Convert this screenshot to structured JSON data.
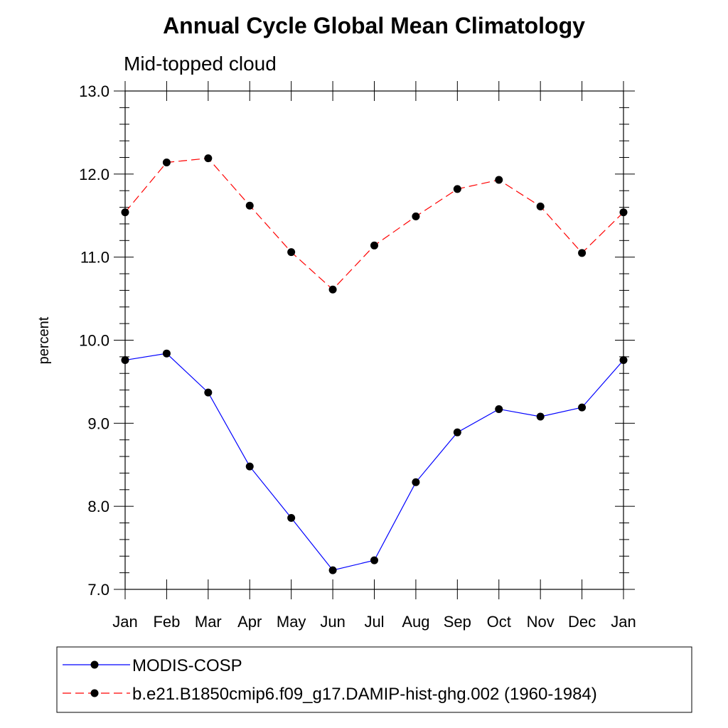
{
  "chart_data": {
    "type": "line",
    "title": "Annual Cycle Global Mean Climatology",
    "subtitle": "Mid-topped cloud",
    "xlabel": "",
    "ylabel": "percent",
    "categories": [
      "Jan",
      "Feb",
      "Mar",
      "Apr",
      "May",
      "Jun",
      "Jul",
      "Aug",
      "Sep",
      "Oct",
      "Nov",
      "Dec",
      "Jan"
    ],
    "ylim": [
      7.0,
      13.0
    ],
    "yticks": [
      "7.0",
      "8.0",
      "9.0",
      "10.0",
      "11.0",
      "12.0",
      "13.0"
    ],
    "grid": false,
    "legend_position": "bottom",
    "series": [
      {
        "name": "MODIS-COSP",
        "color": "#0000ff",
        "line_style": "solid",
        "marker": "filled-circle",
        "values": [
          9.76,
          9.84,
          9.37,
          8.48,
          7.86,
          7.23,
          7.35,
          8.29,
          8.89,
          9.17,
          9.08,
          9.19,
          9.76
        ]
      },
      {
        "name": "b.e21.B1850cmip6.f09_g17.DAMIP-hist-ghg.002 (1960-1984)",
        "color": "#ff0000",
        "line_style": "dashed",
        "marker": "filled-circle",
        "values": [
          11.54,
          12.14,
          12.19,
          11.62,
          11.06,
          10.61,
          11.14,
          11.49,
          11.82,
          11.93,
          11.61,
          11.05,
          11.54
        ]
      }
    ]
  }
}
